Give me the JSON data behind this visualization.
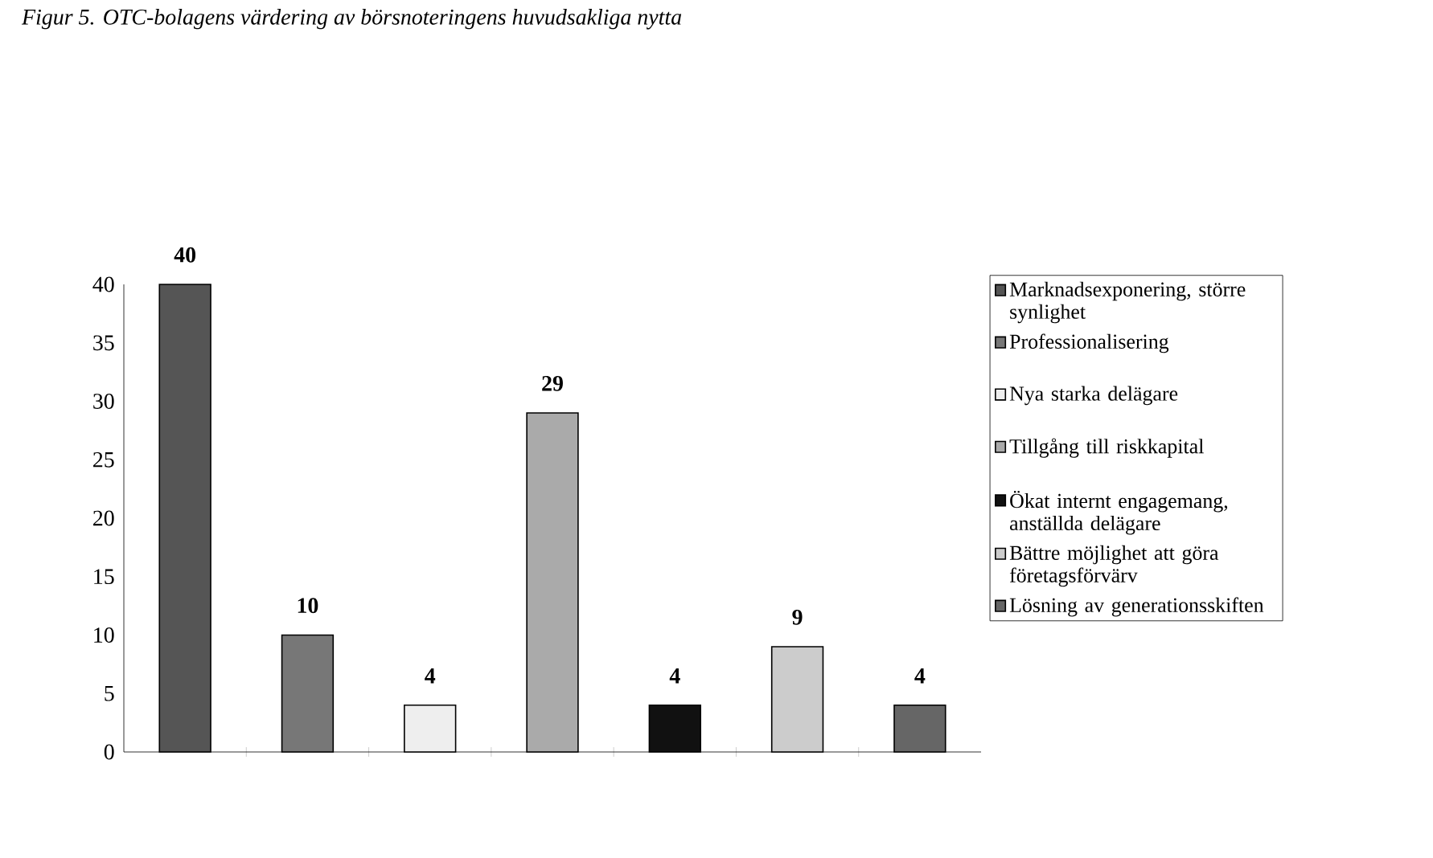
{
  "chart_data": {
    "type": "bar",
    "title": "Figur 5. OTC-bolagens värdering av börsnoteringens huvudsakliga nytta",
    "categories": [
      null,
      null,
      null,
      null,
      null,
      null,
      null
    ],
    "series": [
      {
        "name": "Marknadsexponering, större synlighet",
        "color": "#555555",
        "values": [
          40,
          null,
          null,
          null,
          null,
          null,
          null
        ]
      },
      {
        "name": "Professionalisering",
        "color": "#777777",
        "values": [
          null,
          10,
          null,
          null,
          null,
          null,
          null
        ]
      },
      {
        "name": "Nya starka delägare",
        "color": "#eeeeee",
        "values": [
          null,
          null,
          4,
          null,
          null,
          null,
          null
        ]
      },
      {
        "name": "Tillgång till riskkapital",
        "color": "#aaaaaa",
        "values": [
          null,
          null,
          null,
          29,
          null,
          null,
          null
        ]
      },
      {
        "name": "Ökat internt engagemang, anställda delägare",
        "color": "#111111",
        "values": [
          null,
          null,
          null,
          null,
          4,
          null,
          null
        ]
      },
      {
        "name": "Bättre möjlighet att göra företagsförvärv",
        "color": "#cccccc",
        "values": [
          null,
          null,
          null,
          null,
          null,
          9,
          null
        ]
      },
      {
        "name": "Lösning av generationsskiften",
        "color": "#666666",
        "values": [
          null,
          null,
          null,
          null,
          null,
          null,
          4
        ]
      }
    ],
    "ylim": [
      0,
      40
    ],
    "yticks": [
      0,
      5,
      10,
      15,
      20,
      25,
      30,
      35,
      40
    ],
    "data_labels": true,
    "legend": "right",
    "grid": false
  }
}
